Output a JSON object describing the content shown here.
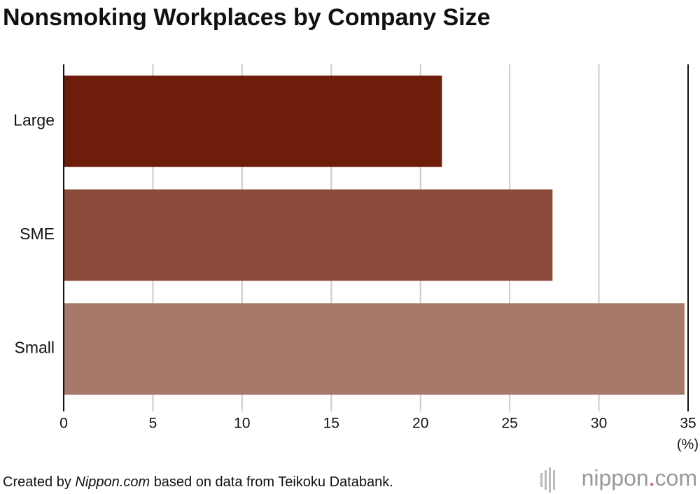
{
  "chart_data": {
    "type": "barh",
    "title": "Nonsmoking Workplaces by Company Size",
    "categories": [
      "Large",
      "SME",
      "Small"
    ],
    "values": [
      21.2,
      27.4,
      34.8
    ],
    "colors": [
      "#6e1d0a",
      "#8c4a3a",
      "#a8786b"
    ],
    "xlim": [
      0,
      35
    ],
    "xticks": [
      0,
      5,
      10,
      15,
      20,
      25,
      30,
      35
    ],
    "grid": true,
    "x_unit": "(%)",
    "source_prefix": "Created by",
    "source_italic": "Nippon.com",
    "source_suffix": "based on data from Teikoku Databank.",
    "logo_name": "nippon",
    "logo_dot": ".",
    "logo_tld": "com"
  }
}
